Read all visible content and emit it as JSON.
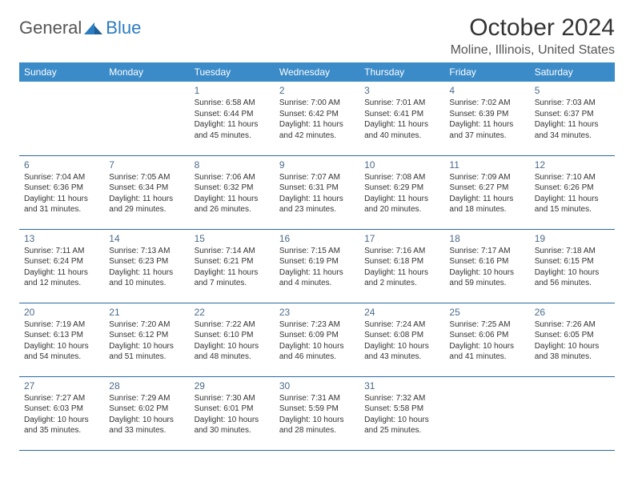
{
  "logo": {
    "general": "General",
    "blue": "Blue"
  },
  "title": "October 2024",
  "location": "Moline, Illinois, United States",
  "colors": {
    "header_bg": "#3b8bc8",
    "header_text": "#ffffff",
    "rule": "#2b6aa0",
    "daynum": "#4a6b8a",
    "body_text": "#333333",
    "logo_blue": "#2b7cc0",
    "logo_gray": "#555555",
    "page_bg": "#ffffff"
  },
  "weekdays": [
    "Sunday",
    "Monday",
    "Tuesday",
    "Wednesday",
    "Thursday",
    "Friday",
    "Saturday"
  ],
  "weeks": [
    [
      null,
      null,
      {
        "d": "1",
        "sr": "Sunrise: 6:58 AM",
        "ss": "Sunset: 6:44 PM",
        "dl1": "Daylight: 11 hours",
        "dl2": "and 45 minutes."
      },
      {
        "d": "2",
        "sr": "Sunrise: 7:00 AM",
        "ss": "Sunset: 6:42 PM",
        "dl1": "Daylight: 11 hours",
        "dl2": "and 42 minutes."
      },
      {
        "d": "3",
        "sr": "Sunrise: 7:01 AM",
        "ss": "Sunset: 6:41 PM",
        "dl1": "Daylight: 11 hours",
        "dl2": "and 40 minutes."
      },
      {
        "d": "4",
        "sr": "Sunrise: 7:02 AM",
        "ss": "Sunset: 6:39 PM",
        "dl1": "Daylight: 11 hours",
        "dl2": "and 37 minutes."
      },
      {
        "d": "5",
        "sr": "Sunrise: 7:03 AM",
        "ss": "Sunset: 6:37 PM",
        "dl1": "Daylight: 11 hours",
        "dl2": "and 34 minutes."
      }
    ],
    [
      {
        "d": "6",
        "sr": "Sunrise: 7:04 AM",
        "ss": "Sunset: 6:36 PM",
        "dl1": "Daylight: 11 hours",
        "dl2": "and 31 minutes."
      },
      {
        "d": "7",
        "sr": "Sunrise: 7:05 AM",
        "ss": "Sunset: 6:34 PM",
        "dl1": "Daylight: 11 hours",
        "dl2": "and 29 minutes."
      },
      {
        "d": "8",
        "sr": "Sunrise: 7:06 AM",
        "ss": "Sunset: 6:32 PM",
        "dl1": "Daylight: 11 hours",
        "dl2": "and 26 minutes."
      },
      {
        "d": "9",
        "sr": "Sunrise: 7:07 AM",
        "ss": "Sunset: 6:31 PM",
        "dl1": "Daylight: 11 hours",
        "dl2": "and 23 minutes."
      },
      {
        "d": "10",
        "sr": "Sunrise: 7:08 AM",
        "ss": "Sunset: 6:29 PM",
        "dl1": "Daylight: 11 hours",
        "dl2": "and 20 minutes."
      },
      {
        "d": "11",
        "sr": "Sunrise: 7:09 AM",
        "ss": "Sunset: 6:27 PM",
        "dl1": "Daylight: 11 hours",
        "dl2": "and 18 minutes."
      },
      {
        "d": "12",
        "sr": "Sunrise: 7:10 AM",
        "ss": "Sunset: 6:26 PM",
        "dl1": "Daylight: 11 hours",
        "dl2": "and 15 minutes."
      }
    ],
    [
      {
        "d": "13",
        "sr": "Sunrise: 7:11 AM",
        "ss": "Sunset: 6:24 PM",
        "dl1": "Daylight: 11 hours",
        "dl2": "and 12 minutes."
      },
      {
        "d": "14",
        "sr": "Sunrise: 7:13 AM",
        "ss": "Sunset: 6:23 PM",
        "dl1": "Daylight: 11 hours",
        "dl2": "and 10 minutes."
      },
      {
        "d": "15",
        "sr": "Sunrise: 7:14 AM",
        "ss": "Sunset: 6:21 PM",
        "dl1": "Daylight: 11 hours",
        "dl2": "and 7 minutes."
      },
      {
        "d": "16",
        "sr": "Sunrise: 7:15 AM",
        "ss": "Sunset: 6:19 PM",
        "dl1": "Daylight: 11 hours",
        "dl2": "and 4 minutes."
      },
      {
        "d": "17",
        "sr": "Sunrise: 7:16 AM",
        "ss": "Sunset: 6:18 PM",
        "dl1": "Daylight: 11 hours",
        "dl2": "and 2 minutes."
      },
      {
        "d": "18",
        "sr": "Sunrise: 7:17 AM",
        "ss": "Sunset: 6:16 PM",
        "dl1": "Daylight: 10 hours",
        "dl2": "and 59 minutes."
      },
      {
        "d": "19",
        "sr": "Sunrise: 7:18 AM",
        "ss": "Sunset: 6:15 PM",
        "dl1": "Daylight: 10 hours",
        "dl2": "and 56 minutes."
      }
    ],
    [
      {
        "d": "20",
        "sr": "Sunrise: 7:19 AM",
        "ss": "Sunset: 6:13 PM",
        "dl1": "Daylight: 10 hours",
        "dl2": "and 54 minutes."
      },
      {
        "d": "21",
        "sr": "Sunrise: 7:20 AM",
        "ss": "Sunset: 6:12 PM",
        "dl1": "Daylight: 10 hours",
        "dl2": "and 51 minutes."
      },
      {
        "d": "22",
        "sr": "Sunrise: 7:22 AM",
        "ss": "Sunset: 6:10 PM",
        "dl1": "Daylight: 10 hours",
        "dl2": "and 48 minutes."
      },
      {
        "d": "23",
        "sr": "Sunrise: 7:23 AM",
        "ss": "Sunset: 6:09 PM",
        "dl1": "Daylight: 10 hours",
        "dl2": "and 46 minutes."
      },
      {
        "d": "24",
        "sr": "Sunrise: 7:24 AM",
        "ss": "Sunset: 6:08 PM",
        "dl1": "Daylight: 10 hours",
        "dl2": "and 43 minutes."
      },
      {
        "d": "25",
        "sr": "Sunrise: 7:25 AM",
        "ss": "Sunset: 6:06 PM",
        "dl1": "Daylight: 10 hours",
        "dl2": "and 41 minutes."
      },
      {
        "d": "26",
        "sr": "Sunrise: 7:26 AM",
        "ss": "Sunset: 6:05 PM",
        "dl1": "Daylight: 10 hours",
        "dl2": "and 38 minutes."
      }
    ],
    [
      {
        "d": "27",
        "sr": "Sunrise: 7:27 AM",
        "ss": "Sunset: 6:03 PM",
        "dl1": "Daylight: 10 hours",
        "dl2": "and 35 minutes."
      },
      {
        "d": "28",
        "sr": "Sunrise: 7:29 AM",
        "ss": "Sunset: 6:02 PM",
        "dl1": "Daylight: 10 hours",
        "dl2": "and 33 minutes."
      },
      {
        "d": "29",
        "sr": "Sunrise: 7:30 AM",
        "ss": "Sunset: 6:01 PM",
        "dl1": "Daylight: 10 hours",
        "dl2": "and 30 minutes."
      },
      {
        "d": "30",
        "sr": "Sunrise: 7:31 AM",
        "ss": "Sunset: 5:59 PM",
        "dl1": "Daylight: 10 hours",
        "dl2": "and 28 minutes."
      },
      {
        "d": "31",
        "sr": "Sunrise: 7:32 AM",
        "ss": "Sunset: 5:58 PM",
        "dl1": "Daylight: 10 hours",
        "dl2": "and 25 minutes."
      },
      null,
      null
    ]
  ]
}
